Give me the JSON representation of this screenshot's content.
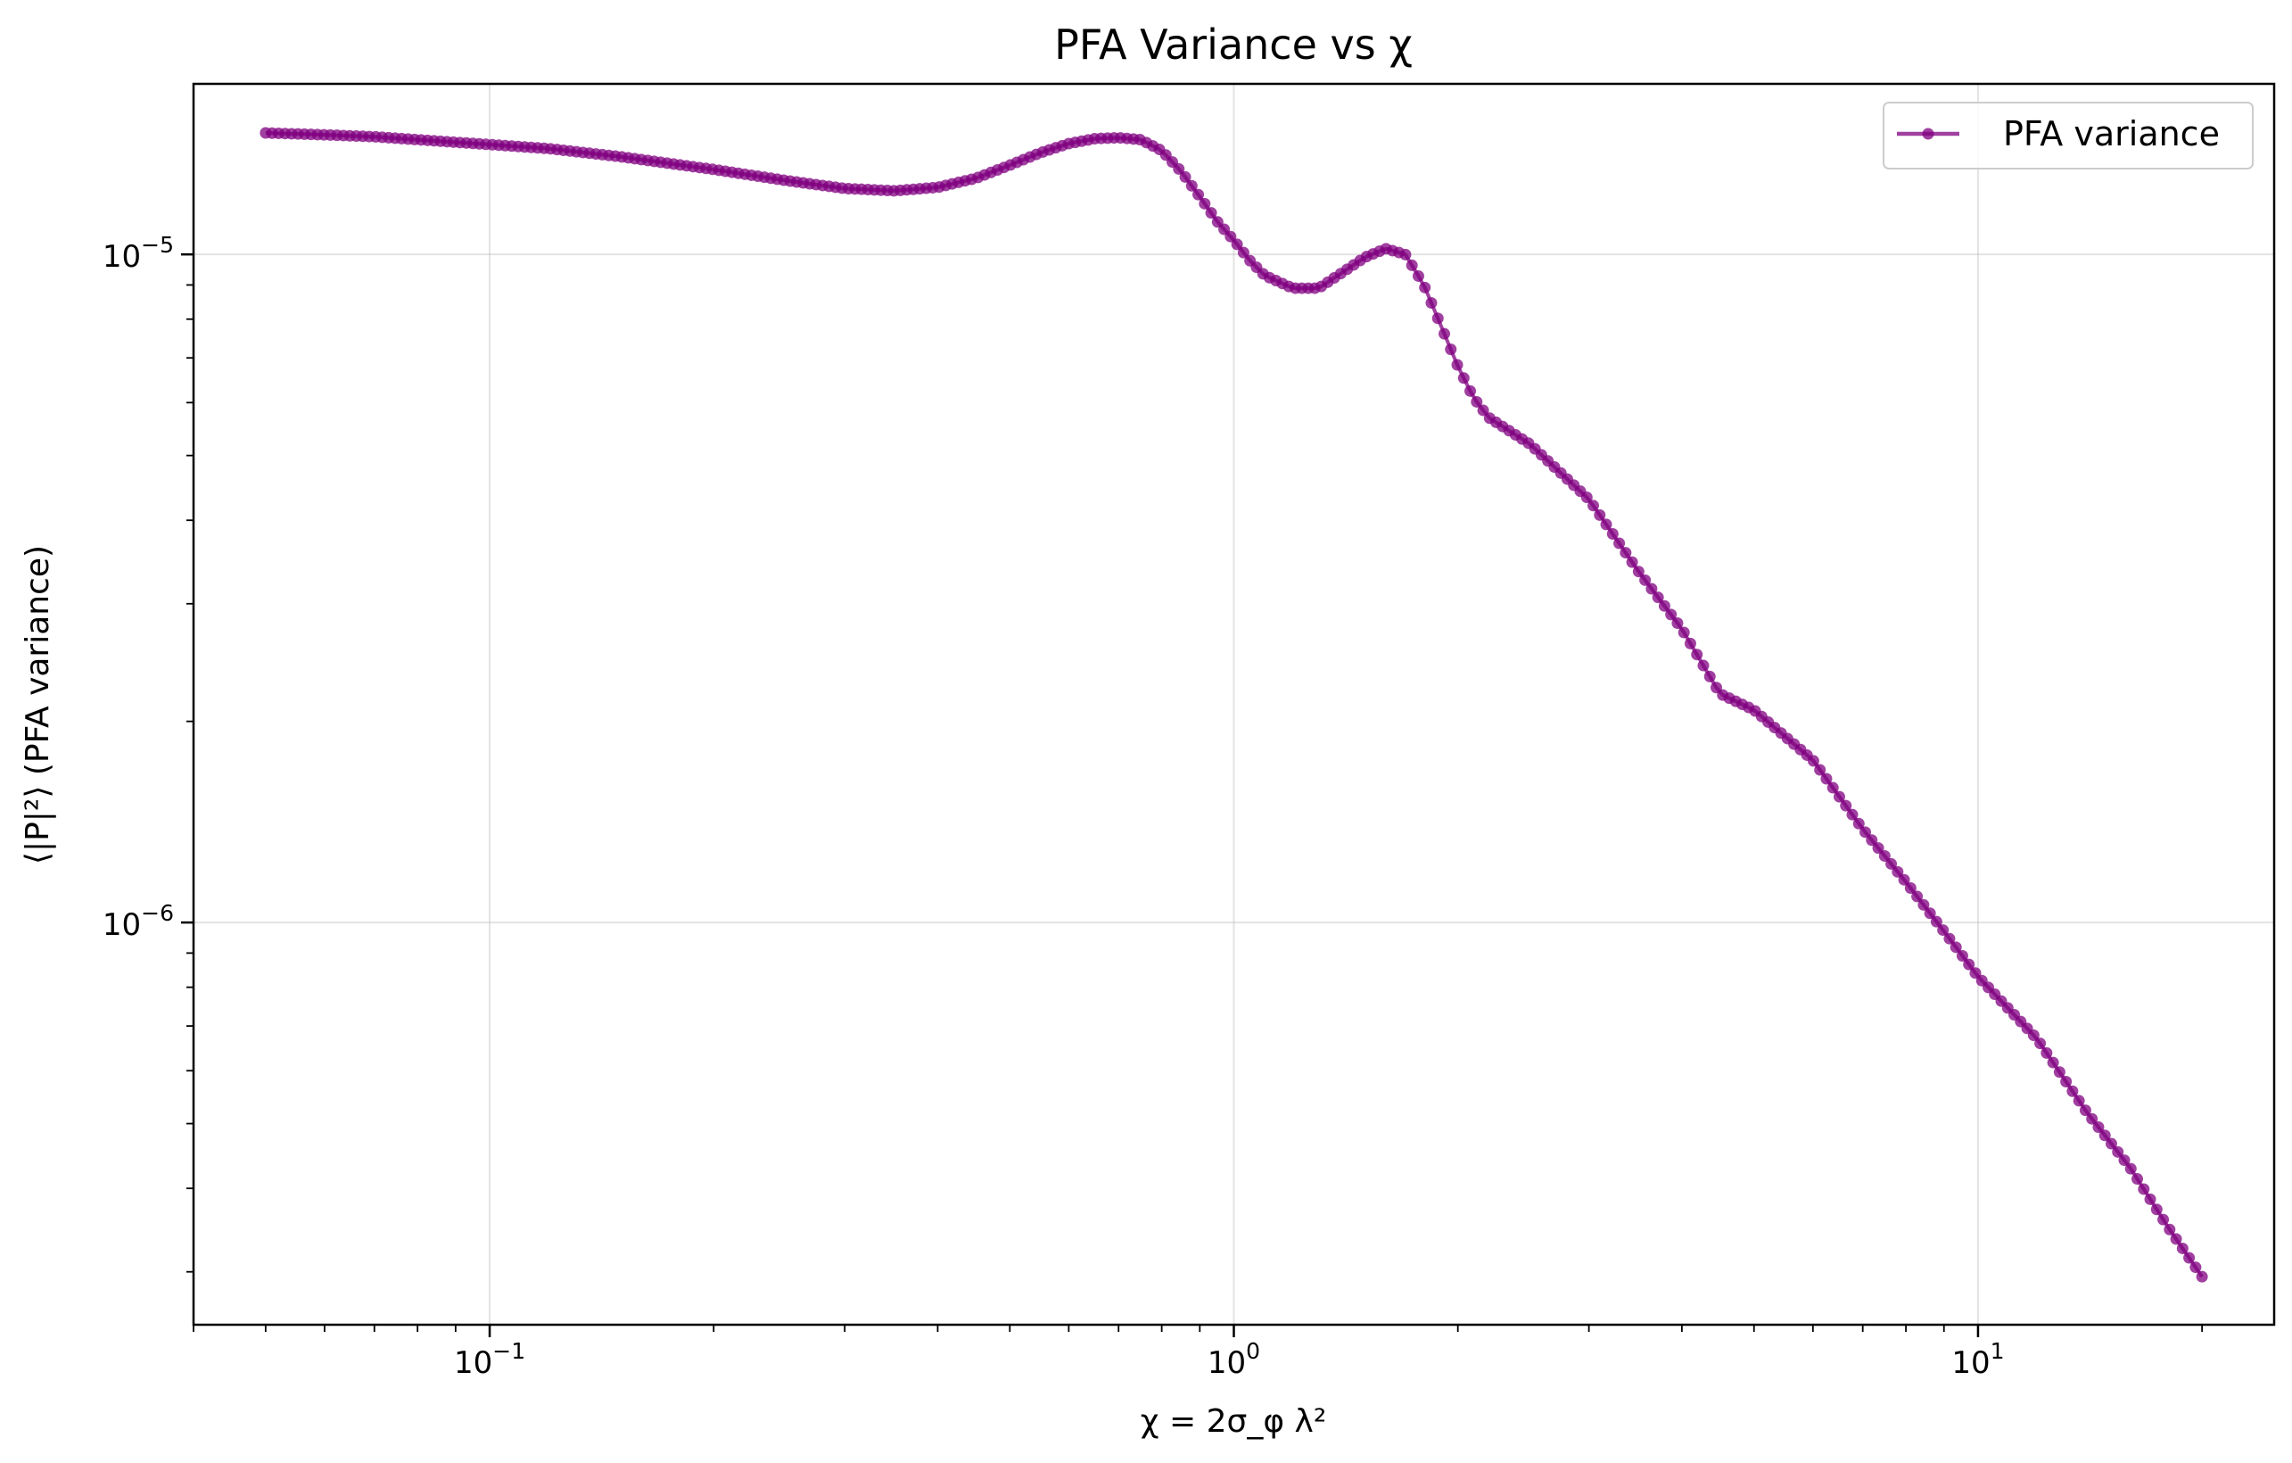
{
  "chart_data": {
    "type": "line",
    "title": "PFA Variance vs χ",
    "xlabel": "χ = 2σ_φ λ²",
    "ylabel": "⟨|P|²⟩ (PFA variance)",
    "xscale": "log",
    "yscale": "log",
    "xlim": [
      0.04,
      25
    ],
    "ylim": [
      2.5e-07,
      1.8e-05
    ],
    "x_ticks": [
      {
        "value": 0.1,
        "base": "10",
        "exp": "−1"
      },
      {
        "value": 1,
        "base": "10",
        "exp": "0"
      },
      {
        "value": 10,
        "base": "10",
        "exp": "1"
      }
    ],
    "y_ticks": [
      {
        "value": 1e-06,
        "base": "10",
        "exp": "−6"
      },
      {
        "value": 1e-05,
        "base": "10",
        "exp": "−5"
      }
    ],
    "grid": true,
    "legend_position": "top-right",
    "color": "#800080",
    "series": [
      {
        "name": "PFA variance",
        "points": [
          [
            0.05,
            1.52e-05
          ],
          [
            0.06,
            1.51e-05
          ],
          [
            0.07,
            1.5e-05
          ],
          [
            0.08,
            1.485e-05
          ],
          [
            0.1,
            1.46e-05
          ],
          [
            0.12,
            1.44e-05
          ],
          [
            0.15,
            1.4e-05
          ],
          [
            0.2,
            1.34e-05
          ],
          [
            0.25,
            1.29e-05
          ],
          [
            0.3,
            1.255e-05
          ],
          [
            0.35,
            1.245e-05
          ],
          [
            0.4,
            1.26e-05
          ],
          [
            0.45,
            1.3e-05
          ],
          [
            0.5,
            1.36e-05
          ],
          [
            0.55,
            1.42e-05
          ],
          [
            0.6,
            1.465e-05
          ],
          [
            0.65,
            1.49e-05
          ],
          [
            0.7,
            1.495e-05
          ],
          [
            0.75,
            1.485e-05
          ],
          [
            0.8,
            1.43e-05
          ],
          [
            0.85,
            1.33e-05
          ],
          [
            0.9,
            1.22e-05
          ],
          [
            0.95,
            1.12e-05
          ],
          [
            1.0,
            1.05e-05
          ],
          [
            1.05,
            9.8e-06
          ],
          [
            1.1,
            9.3e-06
          ],
          [
            1.2,
            8.9e-06
          ],
          [
            1.3,
            8.9e-06
          ],
          [
            1.4,
            9.4e-06
          ],
          [
            1.5,
            9.9e-06
          ],
          [
            1.6,
            1.02e-05
          ],
          [
            1.7,
            1e-05
          ],
          [
            1.8,
            9e-06
          ],
          [
            1.9,
            7.8e-06
          ],
          [
            2.0,
            6.8e-06
          ],
          [
            2.1,
            6.1e-06
          ],
          [
            2.2,
            5.7e-06
          ],
          [
            2.5,
            5.2e-06
          ],
          [
            3.0,
            4.3e-06
          ],
          [
            3.5,
            3.35e-06
          ],
          [
            4.0,
            2.75e-06
          ],
          [
            4.5,
            2.2e-06
          ],
          [
            5.0,
            2.08e-06
          ],
          [
            5.5,
            1.9e-06
          ],
          [
            6.0,
            1.75e-06
          ],
          [
            7.0,
            1.38e-06
          ],
          [
            8.0,
            1.15e-06
          ],
          [
            9.0,
            9.7e-07
          ],
          [
            10.0,
            8.3e-07
          ],
          [
            12.0,
            6.7e-07
          ],
          [
            14.0,
            5.2e-07
          ],
          [
            16.0,
            4.3e-07
          ],
          [
            18.0,
            3.5e-07
          ],
          [
            20.0,
            2.95e-07
          ]
        ]
      }
    ]
  }
}
